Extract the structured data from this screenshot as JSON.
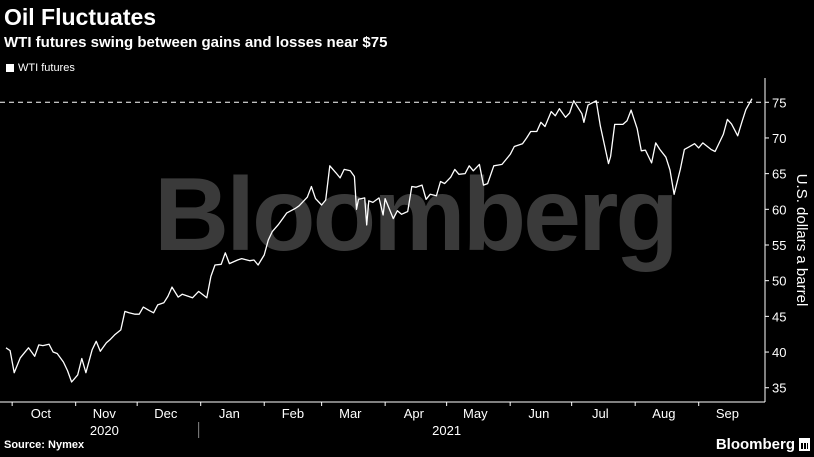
{
  "title": "Oil Fluctuates",
  "subtitle": "WTI futures swing between gains and losses near $75",
  "source": "Source: Nymex",
  "brand": "Bloomberg",
  "watermark": "Bloomberg",
  "colors": {
    "background": "#000000",
    "line": "#ffffff",
    "watermark": "#3a3a3a",
    "grid": "#2e2e2e"
  },
  "chart_data": {
    "type": "line",
    "xlabel": "",
    "ylabel": "U.S. dollars a barrel",
    "ylim": [
      33,
      77
    ],
    "yticks": [
      35,
      40,
      45,
      50,
      55,
      60,
      65,
      70,
      75
    ],
    "y_axis_side": "right",
    "grid": false,
    "legend": "top-left",
    "reference_line": {
      "y": 75,
      "style": "dashed"
    },
    "x_range": [
      "2020-09-28",
      "2021-09-27"
    ],
    "month_ticks": [
      {
        "label": "Oct",
        "date": "2020-10-15"
      },
      {
        "label": "Nov",
        "date": "2020-11-15"
      },
      {
        "label": "Dec",
        "date": "2020-12-15"
      },
      {
        "label": "Jan",
        "date": "2021-01-15"
      },
      {
        "label": "Feb",
        "date": "2021-02-15"
      },
      {
        "label": "Mar",
        "date": "2021-03-15"
      },
      {
        "label": "Apr",
        "date": "2021-04-15"
      },
      {
        "label": "May",
        "date": "2021-05-15"
      },
      {
        "label": "Jun",
        "date": "2021-06-15"
      },
      {
        "label": "Jul",
        "date": "2021-07-15"
      },
      {
        "label": "Aug",
        "date": "2021-08-15"
      },
      {
        "label": "Sep",
        "date": "2021-09-15"
      }
    ],
    "year_labels": [
      {
        "label": "2020",
        "date": "2020-11-15"
      },
      {
        "label": "2021",
        "date": "2021-05-01"
      }
    ],
    "year_divider": "2020-12-31",
    "series": [
      {
        "name": "WTI futures",
        "points": [
          [
            "2020-09-28",
            40.6
          ],
          [
            "2020-09-30",
            40.2
          ],
          [
            "2020-10-02",
            37.1
          ],
          [
            "2020-10-05",
            39.2
          ],
          [
            "2020-10-07",
            39.9
          ],
          [
            "2020-10-09",
            40.6
          ],
          [
            "2020-10-12",
            39.4
          ],
          [
            "2020-10-14",
            41.0
          ],
          [
            "2020-10-16",
            40.9
          ],
          [
            "2020-10-19",
            41.1
          ],
          [
            "2020-10-21",
            40.0
          ],
          [
            "2020-10-23",
            39.8
          ],
          [
            "2020-10-26",
            38.6
          ],
          [
            "2020-10-28",
            37.4
          ],
          [
            "2020-10-30",
            35.8
          ],
          [
            "2020-11-02",
            36.8
          ],
          [
            "2020-11-04",
            39.1
          ],
          [
            "2020-11-06",
            37.1
          ],
          [
            "2020-11-09",
            40.3
          ],
          [
            "2020-11-11",
            41.5
          ],
          [
            "2020-11-13",
            40.1
          ],
          [
            "2020-11-16",
            41.3
          ],
          [
            "2020-11-18",
            41.8
          ],
          [
            "2020-11-20",
            42.4
          ],
          [
            "2020-11-23",
            43.1
          ],
          [
            "2020-11-25",
            45.7
          ],
          [
            "2020-11-27",
            45.5
          ],
          [
            "2020-11-30",
            45.3
          ],
          [
            "2020-12-02",
            45.3
          ],
          [
            "2020-12-04",
            46.3
          ],
          [
            "2020-12-07",
            45.8
          ],
          [
            "2020-12-09",
            45.5
          ],
          [
            "2020-12-11",
            46.6
          ],
          [
            "2020-12-14",
            46.9
          ],
          [
            "2020-12-16",
            47.8
          ],
          [
            "2020-12-18",
            49.1
          ],
          [
            "2020-12-21",
            47.7
          ],
          [
            "2020-12-23",
            48.1
          ],
          [
            "2020-12-28",
            47.6
          ],
          [
            "2020-12-31",
            48.5
          ],
          [
            "2021-01-04",
            47.6
          ],
          [
            "2021-01-06",
            50.6
          ],
          [
            "2021-01-08",
            52.2
          ],
          [
            "2021-01-11",
            52.3
          ],
          [
            "2021-01-13",
            53.9
          ],
          [
            "2021-01-15",
            52.4
          ],
          [
            "2021-01-19",
            52.9
          ],
          [
            "2021-01-21",
            53.1
          ],
          [
            "2021-01-25",
            52.8
          ],
          [
            "2021-01-27",
            52.9
          ],
          [
            "2021-01-29",
            52.2
          ],
          [
            "2021-02-01",
            53.6
          ],
          [
            "2021-02-03",
            55.7
          ],
          [
            "2021-02-05",
            56.9
          ],
          [
            "2021-02-08",
            57.9
          ],
          [
            "2021-02-10",
            58.7
          ],
          [
            "2021-02-12",
            59.5
          ],
          [
            "2021-02-16",
            60.1
          ],
          [
            "2021-02-18",
            60.5
          ],
          [
            "2021-02-22",
            61.7
          ],
          [
            "2021-02-24",
            63.2
          ],
          [
            "2021-02-26",
            61.5
          ],
          [
            "2021-03-01",
            60.6
          ],
          [
            "2021-03-03",
            61.3
          ],
          [
            "2021-03-05",
            66.1
          ],
          [
            "2021-03-08",
            65.1
          ],
          [
            "2021-03-10",
            64.4
          ],
          [
            "2021-03-12",
            65.6
          ],
          [
            "2021-03-15",
            65.4
          ],
          [
            "2021-03-17",
            64.6
          ],
          [
            "2021-03-18",
            60.0
          ],
          [
            "2021-03-19",
            61.4
          ],
          [
            "2021-03-22",
            61.6
          ],
          [
            "2021-03-23",
            57.8
          ],
          [
            "2021-03-24",
            61.2
          ],
          [
            "2021-03-26",
            60.97
          ],
          [
            "2021-03-29",
            61.6
          ],
          [
            "2021-03-31",
            59.2
          ],
          [
            "2021-04-01",
            61.5
          ],
          [
            "2021-04-05",
            58.7
          ],
          [
            "2021-04-07",
            59.8
          ],
          [
            "2021-04-09",
            59.3
          ],
          [
            "2021-04-12",
            59.7
          ],
          [
            "2021-04-14",
            63.2
          ],
          [
            "2021-04-16",
            63.1
          ],
          [
            "2021-04-19",
            63.4
          ],
          [
            "2021-04-21",
            61.4
          ],
          [
            "2021-04-23",
            62.1
          ],
          [
            "2021-04-26",
            61.9
          ],
          [
            "2021-04-28",
            63.9
          ],
          [
            "2021-04-30",
            63.6
          ],
          [
            "2021-05-03",
            64.5
          ],
          [
            "2021-05-05",
            65.6
          ],
          [
            "2021-05-07",
            64.9
          ],
          [
            "2021-05-10",
            65.0
          ],
          [
            "2021-05-12",
            66.1
          ],
          [
            "2021-05-14",
            65.4
          ],
          [
            "2021-05-17",
            66.3
          ],
          [
            "2021-05-19",
            63.4
          ],
          [
            "2021-05-21",
            63.6
          ],
          [
            "2021-05-24",
            66.1
          ],
          [
            "2021-05-26",
            66.2
          ],
          [
            "2021-05-28",
            66.3
          ],
          [
            "2021-06-01",
            67.7
          ],
          [
            "2021-06-03",
            68.8
          ],
          [
            "2021-06-07",
            69.2
          ],
          [
            "2021-06-09",
            70.0
          ],
          [
            "2021-06-11",
            70.9
          ],
          [
            "2021-06-14",
            70.9
          ],
          [
            "2021-06-16",
            72.2
          ],
          [
            "2021-06-18",
            71.6
          ],
          [
            "2021-06-21",
            73.7
          ],
          [
            "2021-06-23",
            73.1
          ],
          [
            "2021-06-25",
            74.1
          ],
          [
            "2021-06-28",
            72.9
          ],
          [
            "2021-06-30",
            73.5
          ],
          [
            "2021-07-02",
            75.2
          ],
          [
            "2021-07-06",
            73.4
          ],
          [
            "2021-07-07",
            72.2
          ],
          [
            "2021-07-09",
            74.6
          ],
          [
            "2021-07-13",
            75.2
          ],
          [
            "2021-07-15",
            71.7
          ],
          [
            "2021-07-19",
            66.4
          ],
          [
            "2021-07-20",
            67.4
          ],
          [
            "2021-07-22",
            71.9
          ],
          [
            "2021-07-26",
            71.9
          ],
          [
            "2021-07-28",
            72.4
          ],
          [
            "2021-07-30",
            73.9
          ],
          [
            "2021-08-02",
            71.3
          ],
          [
            "2021-08-04",
            68.2
          ],
          [
            "2021-08-06",
            68.3
          ],
          [
            "2021-08-09",
            66.5
          ],
          [
            "2021-08-11",
            69.3
          ],
          [
            "2021-08-13",
            68.4
          ],
          [
            "2021-08-16",
            67.3
          ],
          [
            "2021-08-18",
            65.5
          ],
          [
            "2021-08-20",
            62.1
          ],
          [
            "2021-08-23",
            65.6
          ],
          [
            "2021-08-25",
            68.4
          ],
          [
            "2021-08-27",
            68.7
          ],
          [
            "2021-08-30",
            69.2
          ],
          [
            "2021-09-01",
            68.6
          ],
          [
            "2021-09-03",
            69.3
          ],
          [
            "2021-09-07",
            68.4
          ],
          [
            "2021-09-09",
            68.1
          ],
          [
            "2021-09-13",
            70.5
          ],
          [
            "2021-09-15",
            72.6
          ],
          [
            "2021-09-17",
            71.97
          ],
          [
            "2021-09-20",
            70.3
          ],
          [
            "2021-09-22",
            72.2
          ],
          [
            "2021-09-24",
            73.98
          ],
          [
            "2021-09-27",
            75.5
          ]
        ]
      }
    ]
  }
}
